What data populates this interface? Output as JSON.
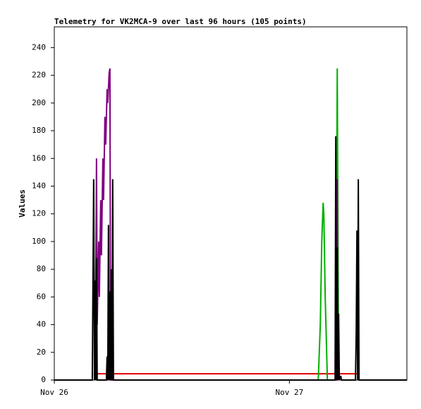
{
  "chart_data": {
    "type": "line",
    "title": "Telemetry for VK2MCA-9 over last 96 hours (105 points)",
    "ylabel": "Values",
    "xlim": [
      0,
      36
    ],
    "xticks": [
      {
        "value": 0,
        "label": "Nov 26"
      },
      {
        "value": 24,
        "label": "Nov 27"
      }
    ],
    "ylim": [
      0,
      255
    ],
    "yticks": [
      0,
      20,
      40,
      60,
      80,
      100,
      120,
      140,
      160,
      180,
      200,
      220,
      240
    ],
    "grid": false,
    "series": [
      {
        "color": "#e00000",
        "x": [
          4.02,
          30.97
        ],
        "values": [
          4.5,
          4.5
        ]
      },
      {
        "color": "#00b000",
        "x": [
          26.95,
          27.16,
          27.31,
          27.45,
          27.52,
          27.66,
          27.88,
          28.74,
          28.89,
          29.03
        ],
        "values": [
          0,
          40,
          100,
          128,
          120,
          60,
          0,
          0,
          225,
          0
        ]
      },
      {
        "color": "#800080",
        "x": [
          4.17,
          4.31,
          4.38,
          4.53,
          4.6,
          4.74,
          4.81,
          4.96,
          5.03,
          5.17,
          5.25,
          5.39,
          5.46,
          5.6,
          5.68,
          5.75,
          28.81,
          28.89,
          28.96
        ],
        "values": [
          0,
          160,
          40,
          100,
          60,
          130,
          90,
          160,
          130,
          190,
          170,
          210,
          200,
          222,
          225,
          0,
          0,
          145,
          0
        ]
      },
      {
        "color": "#000000",
        "x": [
          0,
          3.88,
          4.02,
          4.1,
          4.17,
          4.24,
          4.31,
          4.38,
          5.32,
          5.39,
          5.46,
          5.53,
          5.6,
          5.68,
          5.75,
          5.82,
          5.89,
          5.96,
          6.04,
          28.67,
          28.74,
          28.81,
          28.89,
          28.96,
          29.03,
          29.1,
          29.25,
          29.32,
          30.75,
          30.83,
          30.9,
          30.97,
          31.04,
          31.11,
          36
        ],
        "values": [
          0,
          0,
          145,
          0,
          72,
          0,
          88,
          0,
          0,
          17,
          0,
          112,
          0,
          64,
          0,
          80,
          0,
          145,
          0,
          0,
          176,
          0,
          96,
          0,
          48,
          0,
          3,
          0,
          0,
          36,
          108,
          0,
          145,
          0,
          0
        ]
      }
    ]
  }
}
